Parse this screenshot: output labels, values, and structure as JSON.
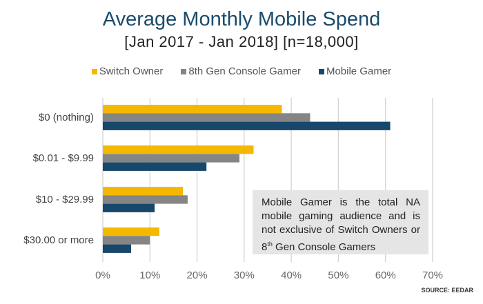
{
  "chart_data": {
    "type": "bar",
    "orientation": "horizontal",
    "title": "Average Monthly Mobile Spend",
    "subtitle": "[Jan 2017 - Jan 2018] [n=18,000]",
    "categories": [
      "$0 (nothing)",
      "$0.01 - $9.99",
      "$10 - $29.99",
      "$30.00 or more"
    ],
    "series": [
      {
        "name": "Switch Owner",
        "color": "#f5b800",
        "values": [
          38,
          32,
          17,
          12
        ]
      },
      {
        "name": "8th Gen Console Gamer",
        "color": "#858585",
        "values": [
          44,
          29,
          18,
          10
        ]
      },
      {
        "name": "Mobile Gamer",
        "color": "#17486b",
        "values": [
          61,
          22,
          11,
          6
        ]
      }
    ],
    "xlim": [
      0,
      70
    ],
    "xticks": [
      "0%",
      "10%",
      "20%",
      "30%",
      "40%",
      "50%",
      "60%",
      "70%"
    ],
    "grid": true,
    "legend": "top",
    "annotation": {
      "text_before_sup": "Mobile Gamer is the total NA mobile gaming audience and is not exclusive of Switch Owners or 8",
      "sup": "th",
      "text_after_sup": " Gen Console Gamers"
    },
    "source": "SOURCE: EEDAR"
  }
}
